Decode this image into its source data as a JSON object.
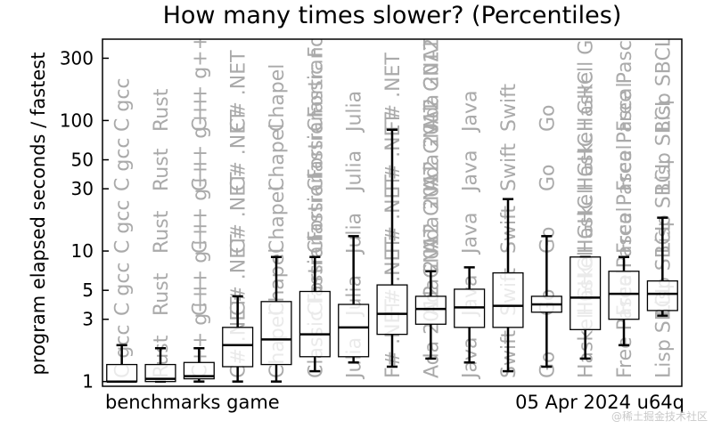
{
  "chart_data": {
    "type": "box",
    "title": "How many times slower? (Percentiles)",
    "ylabel": "program elapsed seconds / fastest",
    "yscale": "log",
    "ylim": [
      0.92,
      420
    ],
    "yticks": [
      1,
      3,
      5,
      10,
      30,
      50,
      100,
      300
    ],
    "ytick_labels": [
      "1",
      "3",
      "5",
      "10",
      "30",
      "50",
      "100",
      "300"
    ],
    "grid": false,
    "footer_left": "benchmarks game",
    "footer_right": "05 Apr 2024 u64q",
    "watermark": "@稀土掘金技术社区",
    "categories": [
      "C gcc",
      "Rust",
      "C++ g++",
      "C# .NET",
      "Chapel",
      "Classic Fortran",
      "Julia",
      "F# .NET",
      "Ada 2012 GNAT",
      "Java",
      "Swift",
      "Go",
      "Haskell GHC",
      "Free Pascal",
      "Lisp SBCL"
    ],
    "label_rows": {
      "row1": [
        "C gcc",
        "Rust",
        "C++ g++",
        "C# .NET",
        "Chapel",
        "Classic Fortran",
        "Julia",
        "F# .NET",
        "Ada 2012 GNAT",
        "Java",
        "Swift",
        "Go",
        "Haskell GHC",
        "Free Pascal",
        "Lisp SBCL"
      ],
      "row2": [
        "C gcc",
        "Rust",
        "C++ g++",
        "C# .NET",
        "Chapel",
        "Classic Fortran",
        "Julia",
        "F# .NET",
        "Ada 2012 GNAT",
        "Java",
        "Swift",
        "Go",
        "Haskell GHC",
        "Free Pascal",
        "Lisp SBCL"
      ],
      "row3": [
        "C gcc",
        "Rust",
        "C++ g++",
        "C# .NET",
        "Chapel",
        "Classic Fortran",
        "Julia",
        "F# .NET",
        "Ada 2012 GNAT",
        "Java",
        "Swift",
        "Go",
        "Haskell GHC",
        "Free Pascal",
        "Lisp SBCL"
      ],
      "row4": [
        "C gcc",
        "Rust",
        "C++ g++",
        "C# .NET",
        "Chapel",
        "Classic Fortran",
        "Julia",
        "F# .NET",
        "Ada 2012 GNAT",
        "Java",
        "Swift",
        "Go",
        "Haskell GHC",
        "Free Pascal",
        "Lisp SBCL"
      ],
      "row5": [
        "C gcc",
        "Rust",
        "C++ g++",
        "C# .NET",
        "Chapel",
        "Classic Fortran",
        "Julia",
        "F# .NET",
        "Ada 2012 GNAT",
        "Java",
        "Swift",
        "Go",
        "Haskell GHC",
        "Free Pascal",
        "Lisp SBCL"
      ]
    },
    "boxes": [
      {
        "whisker_low": 1.0,
        "q1": 1.0,
        "median": 1.0,
        "q3": 1.35,
        "whisker_high": 1.9
      },
      {
        "whisker_low": 1.0,
        "q1": 1.0,
        "median": 1.05,
        "q3": 1.35,
        "whisker_high": 1.8
      },
      {
        "whisker_low": 1.0,
        "q1": 1.05,
        "median": 1.1,
        "q3": 1.4,
        "whisker_high": 1.8
      },
      {
        "whisker_low": 1.0,
        "q1": 1.3,
        "median": 1.9,
        "q3": 2.6,
        "whisker_high": 4.5
      },
      {
        "whisker_low": 1.0,
        "q1": 1.35,
        "median": 2.1,
        "q3": 4.1,
        "whisker_high": 9.0
      },
      {
        "whisker_low": 1.2,
        "q1": 1.55,
        "median": 2.3,
        "q3": 4.9,
        "whisker_high": 9.0
      },
      {
        "whisker_low": 1.4,
        "q1": 1.55,
        "median": 2.6,
        "q3": 3.9,
        "whisker_high": 13.0
      },
      {
        "whisker_low": 1.3,
        "q1": 2.3,
        "median": 3.3,
        "q3": 5.5,
        "whisker_high": 85.0
      },
      {
        "whisker_low": 1.5,
        "q1": 2.75,
        "median": 3.6,
        "q3": 4.5,
        "whisker_high": 7.0
      },
      {
        "whisker_low": 1.4,
        "q1": 2.6,
        "median": 3.7,
        "q3": 5.1,
        "whisker_high": 7.5
      },
      {
        "whisker_low": 1.2,
        "q1": 2.6,
        "median": 3.8,
        "q3": 6.8,
        "whisker_high": 25.0
      },
      {
        "whisker_low": 1.3,
        "q1": 3.4,
        "median": 3.9,
        "q3": 4.5,
        "whisker_high": 13.0
      },
      {
        "whisker_low": 1.5,
        "q1": 2.5,
        "median": 4.4,
        "q3": 9.0,
        "whisker_high": 9.0
      },
      {
        "whisker_low": 1.9,
        "q1": 3.0,
        "median": 4.7,
        "q3": 7.0,
        "whisker_high": 9.0
      },
      {
        "whisker_low": 3.2,
        "q1": 3.5,
        "median": 4.7,
        "q3": 5.9,
        "whisker_high": 18.0
      }
    ]
  }
}
